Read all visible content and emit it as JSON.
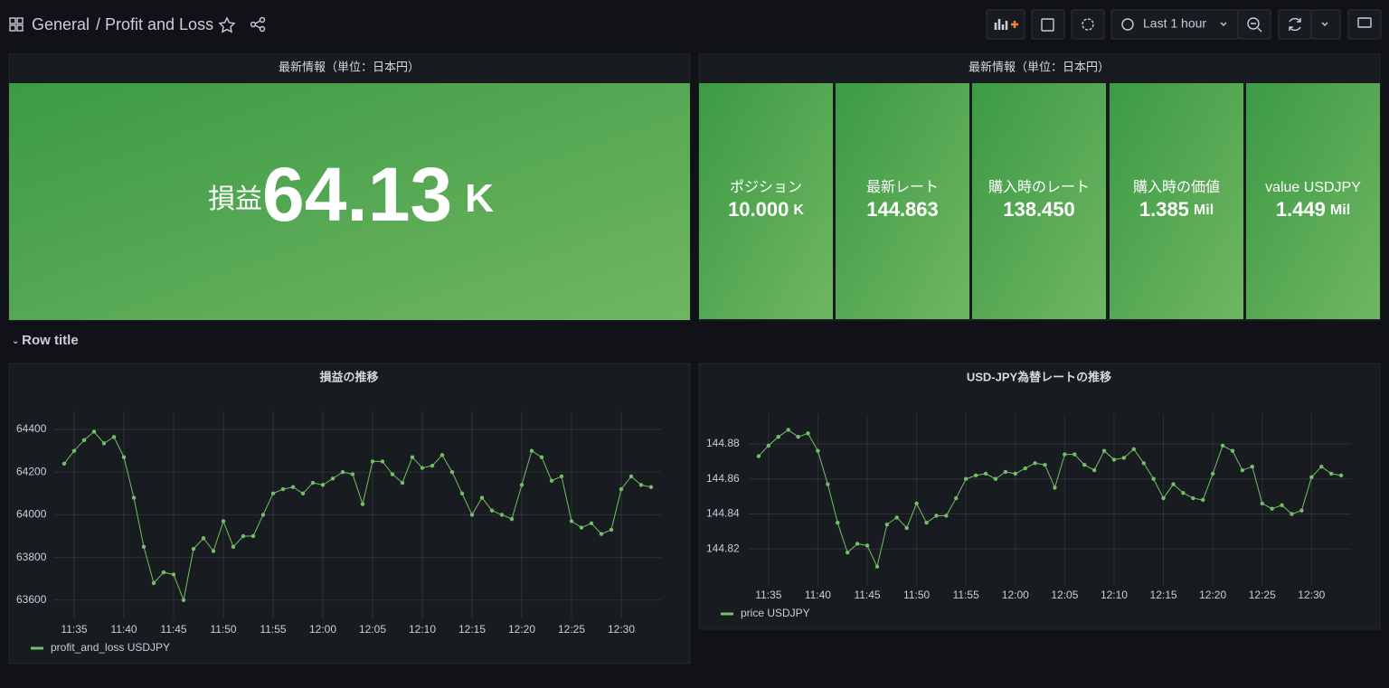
{
  "header": {
    "folder": "General",
    "title": "/ Profit and Loss",
    "time_range": "Last 1 hour"
  },
  "stat_panels": [
    {
      "title": "最新情報（単位：日本円）",
      "stats": [
        {
          "prefix": "損益",
          "value": "64.13",
          "unit": "K"
        }
      ]
    },
    {
      "title": "最新情報（単位：日本円）",
      "stats": [
        {
          "name": "ポジション",
          "value": "10.000",
          "unit": "K"
        },
        {
          "name": "最新レート",
          "value": "144.863"
        },
        {
          "name": "購入時のレート",
          "value": "138.450"
        },
        {
          "name": "購入時の価値",
          "value": "1.385",
          "unit": "Mil"
        },
        {
          "name": "value USDJPY",
          "value": "1.449",
          "unit": "Mil"
        }
      ]
    }
  ],
  "row": {
    "title": "Row title"
  },
  "charts": [
    {
      "type": "line",
      "title": "損益の推移",
      "x": [
        "11:34",
        "11:35",
        "11:36",
        "11:37",
        "11:38",
        "11:39",
        "11:40",
        "11:41",
        "11:42",
        "11:43",
        "11:44",
        "11:45",
        "11:46",
        "11:47",
        "11:48",
        "11:49",
        "11:50",
        "11:51",
        "11:52",
        "11:53",
        "11:54",
        "11:55",
        "11:56",
        "11:57",
        "11:58",
        "11:59",
        "12:00",
        "12:01",
        "12:02",
        "12:03",
        "12:04",
        "12:05",
        "12:06",
        "12:07",
        "12:08",
        "12:09",
        "12:10",
        "12:11",
        "12:12",
        "12:13",
        "12:14",
        "12:15",
        "12:16",
        "12:17",
        "12:18",
        "12:19",
        "12:20",
        "12:21",
        "12:22",
        "12:23",
        "12:24",
        "12:25",
        "12:26",
        "12:27",
        "12:28",
        "12:29",
        "12:30",
        "12:31",
        "12:32",
        "12:33"
      ],
      "series": [
        {
          "name": "profit_and_loss USDJPY",
          "color": "#73bf69",
          "values": [
            64240,
            64300,
            64350,
            64390,
            64335,
            64365,
            64270,
            64080,
            63850,
            63680,
            63730,
            63720,
            63600,
            63840,
            63890,
            63830,
            63970,
            63850,
            63900,
            63900,
            64000,
            64100,
            64120,
            64130,
            64100,
            64150,
            64140,
            64170,
            64200,
            64190,
            64050,
            64250,
            64250,
            64190,
            64150,
            64270,
            64220,
            64230,
            64280,
            64200,
            64100,
            64000,
            64080,
            64020,
            64000,
            63980,
            64140,
            64300,
            64270,
            64160,
            64180,
            63970,
            63940,
            63960,
            63910,
            63930,
            64120,
            64180,
            64140,
            64130
          ]
        }
      ],
      "xlim": [
        "11:33",
        "12:34"
      ],
      "xticks": [
        "11:35",
        "11:40",
        "11:45",
        "11:50",
        "11:55",
        "12:00",
        "12:05",
        "12:10",
        "12:15",
        "12:20",
        "12:25",
        "12:30"
      ],
      "ylim": [
        63510,
        64485
      ],
      "yticks": [
        63600,
        63800,
        64000,
        64200,
        64400
      ],
      "grid": true
    },
    {
      "type": "line",
      "title": "USD-JPY為替レートの推移",
      "x": [
        "11:34",
        "11:35",
        "11:36",
        "11:37",
        "11:38",
        "11:39",
        "11:40",
        "11:41",
        "11:42",
        "11:43",
        "11:44",
        "11:45",
        "11:46",
        "11:47",
        "11:48",
        "11:49",
        "11:50",
        "11:51",
        "11:52",
        "11:53",
        "11:54",
        "11:55",
        "11:56",
        "11:57",
        "11:58",
        "11:59",
        "12:00",
        "12:01",
        "12:02",
        "12:03",
        "12:04",
        "12:05",
        "12:06",
        "12:07",
        "12:08",
        "12:09",
        "12:10",
        "12:11",
        "12:12",
        "12:13",
        "12:14",
        "12:15",
        "12:16",
        "12:17",
        "12:18",
        "12:19",
        "12:20",
        "12:21",
        "12:22",
        "12:23",
        "12:24",
        "12:25",
        "12:26",
        "12:27",
        "12:28",
        "12:29",
        "12:30",
        "12:31",
        "12:32",
        "12:33"
      ],
      "series": [
        {
          "name": "price USDJPY",
          "color": "#73bf69",
          "values": [
            144.873,
            144.879,
            144.884,
            144.888,
            144.884,
            144.886,
            144.876,
            144.857,
            144.835,
            144.818,
            144.823,
            144.822,
            144.81,
            144.834,
            144.838,
            144.832,
            144.846,
            144.835,
            144.839,
            144.839,
            144.849,
            144.86,
            144.862,
            144.863,
            144.86,
            144.864,
            144.863,
            144.866,
            144.869,
            144.868,
            144.855,
            144.874,
            144.874,
            144.868,
            144.865,
            144.876,
            144.871,
            144.872,
            144.877,
            144.869,
            144.86,
            144.849,
            144.857,
            144.852,
            144.849,
            144.848,
            144.863,
            144.879,
            144.876,
            144.865,
            144.867,
            144.846,
            144.843,
            144.845,
            144.84,
            144.842,
            144.861,
            144.867,
            144.863,
            144.862
          ]
        }
      ],
      "xlim": [
        "11:33",
        "12:34"
      ],
      "xticks": [
        "11:35",
        "11:40",
        "11:45",
        "11:50",
        "11:55",
        "12:00",
        "12:05",
        "12:10",
        "12:15",
        "12:20",
        "12:25",
        "12:30"
      ],
      "ylim": [
        144.799,
        144.897
      ],
      "yticks": [
        144.82,
        144.84,
        144.86,
        144.88
      ],
      "grid": true
    }
  ]
}
